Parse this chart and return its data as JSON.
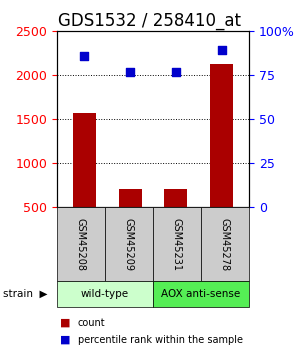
{
  "title": "GDS1532 / 258410_at",
  "samples": [
    "GSM45208",
    "GSM45209",
    "GSM45231",
    "GSM45278"
  ],
  "counts": [
    1570,
    700,
    700,
    2130
  ],
  "percentiles": [
    86,
    77,
    77,
    89
  ],
  "ylim_left": [
    500,
    2500
  ],
  "ylim_right": [
    0,
    100
  ],
  "yticks_left": [
    500,
    1000,
    1500,
    2000,
    2500
  ],
  "yticks_right": [
    0,
    25,
    50,
    75,
    100
  ],
  "bar_color": "#aa0000",
  "dot_color": "#0000cc",
  "groups": [
    {
      "label": "wild-type",
      "samples": [
        0,
        1
      ],
      "color": "#ccffcc"
    },
    {
      "label": "AOX anti-sense",
      "samples": [
        2,
        3
      ],
      "color": "#55ee55"
    }
  ],
  "legend_count_label": "count",
  "legend_pct_label": "percentile rank within the sample",
  "bg_color": "#ffffff",
  "plot_bg": "#ffffff",
  "sample_box_color": "#cccccc",
  "title_fontsize": 12,
  "tick_fontsize": 9,
  "label_fontsize": 7
}
